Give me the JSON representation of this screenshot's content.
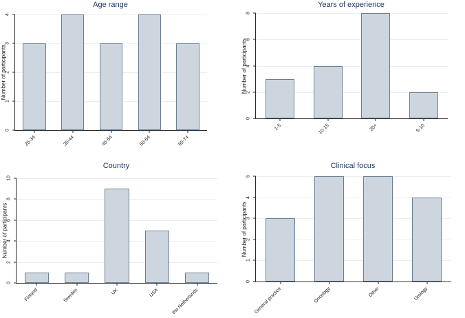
{
  "colors": {
    "bar_fill": "#cdd6df",
    "bar_border": "#6b7e92",
    "title_text": "#1f3864",
    "axis": "#2b2b2b",
    "grid": "#eceff1",
    "tick_text": "#1a1a1a",
    "background": "#ffffff"
  },
  "chart_data": [
    {
      "type": "bar",
      "title": "Age range",
      "ylabel": "Number of participants",
      "xlabel": "",
      "categories": [
        "25-34",
        "35-44",
        "45-54",
        "55-64",
        "65-74"
      ],
      "values": [
        3,
        4,
        3,
        4,
        3
      ],
      "y_ticks": [
        0,
        1,
        2,
        3,
        4
      ],
      "ylim": [
        0,
        4
      ],
      "grid": "on",
      "legend": "none",
      "x_label_angle": 45,
      "y_label_angle": 90
    },
    {
      "type": "bar",
      "title": "Years of experience",
      "ylabel": "Number of participants",
      "xlabel": "",
      "categories": [
        "1-5",
        "10-15",
        "20+",
        "5-10"
      ],
      "values": [
        3,
        4,
        8,
        2
      ],
      "y_ticks": [
        0,
        2,
        4,
        6,
        8
      ],
      "ylim": [
        0,
        8
      ],
      "grid": "on",
      "legend": "none",
      "x_label_angle": 45,
      "y_label_angle": 90
    },
    {
      "type": "bar",
      "title": "Country",
      "ylabel": "Number of participants",
      "xlabel": "",
      "categories": [
        "Finland",
        "Sweden",
        "UK",
        "USA",
        "the Netherlands"
      ],
      "values": [
        1,
        1,
        9,
        5,
        1
      ],
      "y_ticks": [
        0,
        2,
        4,
        6,
        8,
        10
      ],
      "ylim": [
        0,
        10
      ],
      "grid": "on",
      "legend": "none",
      "x_label_angle": 45,
      "y_label_angle": 90
    },
    {
      "type": "bar",
      "title": "Clinical focus",
      "ylabel": "Number of participants",
      "xlabel": "",
      "categories": [
        "General practice",
        "Oncology",
        "Other",
        "Urology"
      ],
      "values": [
        3,
        5,
        5,
        4
      ],
      "y_ticks": [
        0,
        1,
        2,
        3,
        4,
        5
      ],
      "ylim": [
        0,
        5
      ],
      "grid": "on",
      "legend": "none",
      "x_label_angle": 45,
      "y_label_angle": 90
    }
  ]
}
